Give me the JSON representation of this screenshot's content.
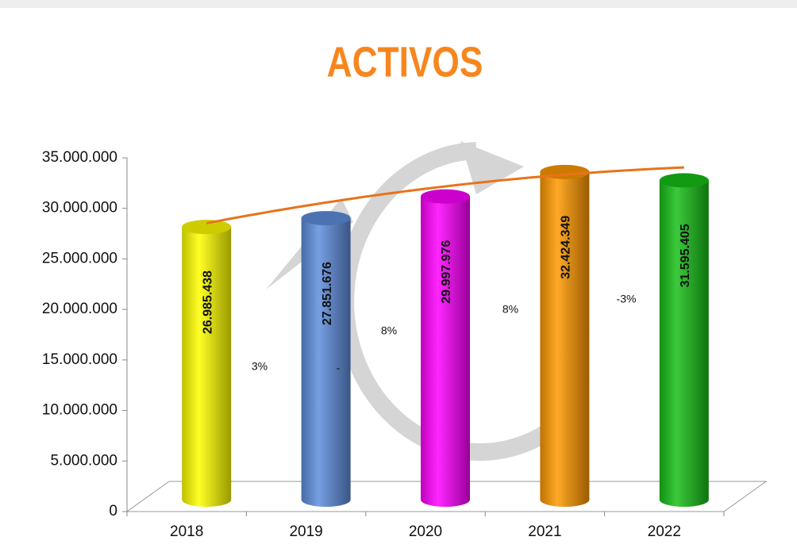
{
  "chart_data": {
    "type": "bar",
    "title": "ACTIVOS",
    "categories": [
      "2018",
      "2019",
      "2020",
      "2021",
      "2022"
    ],
    "values": [
      26985438,
      27851676,
      29997976,
      32424349,
      31595405
    ],
    "value_labels": [
      "26.985.438",
      "27.851.676",
      "29.997.976",
      "32.424.349",
      "31.595.405"
    ],
    "colors": [
      "#ffff00",
      "#5f8ede",
      "#ff00ff",
      "#ff9900",
      "#18c018"
    ],
    "ylim": [
      0,
      35000000
    ],
    "yticks": [
      0,
      {
        "value": 5000000,
        "label": "5.000.000"
      },
      {
        "value": 10000000,
        "label": "10.000.000"
      },
      {
        "value": 15000000,
        "label": "15.000.000"
      },
      {
        "value": 20000000,
        "label": "20.000.000"
      },
      {
        "value": 25000000,
        "label": "25.000.000"
      },
      {
        "value": 30000000,
        "label": "30.000.000"
      },
      {
        "value": 35000000,
        "label": "35.000.000"
      }
    ],
    "annotations": [
      "3%",
      "-",
      "8%",
      "8%",
      "-3%"
    ],
    "trendline_color": "#e8731a"
  }
}
